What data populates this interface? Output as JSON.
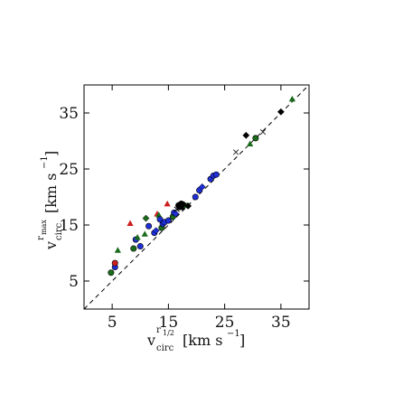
{
  "chart_data": {
    "type": "scatter",
    "xlabel": {
      "base": "v",
      "sub": "circ",
      "sup": "r",
      "supsub": "1/2",
      "units": "[km s",
      "units_exp": "−1",
      "units_close": "]"
    },
    "ylabel": {
      "base": "v",
      "sub": "circ",
      "sup": "r",
      "supsub": "max",
      "units": "[km s",
      "units_exp": "−1",
      "units_close": "]"
    },
    "xlim": [
      0,
      40
    ],
    "ylim": [
      0,
      40
    ],
    "x_ticks": [
      5,
      15,
      25,
      35
    ],
    "y_ticks": [
      5,
      15,
      25,
      35
    ],
    "x_tick_labels": [
      "5",
      "15",
      "25",
      "35"
    ],
    "y_tick_labels": [
      "5",
      "15",
      "25",
      "35"
    ],
    "reference_line": {
      "style": "dashed",
      "relation": "y = x"
    },
    "grid": false,
    "colors": {
      "green": "#1a6b1a",
      "red": "#cc1f1f",
      "blue": "#1f2fd6",
      "black": "#000000",
      "cross": "#333333"
    },
    "points": [
      {
        "x": 4.8,
        "y": 6.5,
        "color": "green",
        "marker": "circle"
      },
      {
        "x": 5.5,
        "y": 7.5,
        "color": "blue",
        "marker": "circle"
      },
      {
        "x": 5.5,
        "y": 8.2,
        "color": "red",
        "marker": "circle"
      },
      {
        "x": 6.0,
        "y": 10.5,
        "color": "green",
        "marker": "triangle"
      },
      {
        "x": 8.2,
        "y": 15.3,
        "color": "red",
        "marker": "triangle"
      },
      {
        "x": 8.8,
        "y": 10.8,
        "color": "green",
        "marker": "circle"
      },
      {
        "x": 9.2,
        "y": 12.4,
        "color": "blue",
        "marker": "circle"
      },
      {
        "x": 9.5,
        "y": 12.8,
        "color": "green",
        "marker": "triangle"
      },
      {
        "x": 10.0,
        "y": 11.2,
        "color": "blue",
        "marker": "circle"
      },
      {
        "x": 10.8,
        "y": 13.4,
        "color": "green",
        "marker": "triangle"
      },
      {
        "x": 11.0,
        "y": 16.2,
        "color": "green",
        "marker": "diamond"
      },
      {
        "x": 11.5,
        "y": 14.8,
        "color": "blue",
        "marker": "circle"
      },
      {
        "x": 12.5,
        "y": 13.6,
        "color": "blue",
        "marker": "circle"
      },
      {
        "x": 12.8,
        "y": 14.0,
        "color": "blue",
        "marker": "diamond"
      },
      {
        "x": 13.0,
        "y": 17.0,
        "color": "red",
        "marker": "triangle"
      },
      {
        "x": 13.3,
        "y": 16.8,
        "color": "green",
        "marker": "triangle"
      },
      {
        "x": 13.5,
        "y": 16.0,
        "color": "blue",
        "marker": "circle"
      },
      {
        "x": 13.8,
        "y": 14.5,
        "color": "green",
        "marker": "circle"
      },
      {
        "x": 14.0,
        "y": 15.2,
        "color": "blue",
        "marker": "circle"
      },
      {
        "x": 14.3,
        "y": 15.5,
        "color": "blue",
        "marker": "circle"
      },
      {
        "x": 14.8,
        "y": 18.8,
        "color": "red",
        "marker": "triangle"
      },
      {
        "x": 15.0,
        "y": 15.8,
        "color": "blue",
        "marker": "circle"
      },
      {
        "x": 15.8,
        "y": 16.5,
        "color": "green",
        "marker": "circle"
      },
      {
        "x": 16.0,
        "y": 17.2,
        "color": "blue",
        "marker": "circle"
      },
      {
        "x": 16.3,
        "y": 17.0,
        "color": "blue",
        "marker": "diamond"
      },
      {
        "x": 16.5,
        "y": 17.8,
        "color": "black",
        "marker": "cross"
      },
      {
        "x": 16.8,
        "y": 18.5,
        "color": "black",
        "marker": "circle"
      },
      {
        "x": 17.0,
        "y": 18.2,
        "color": "black",
        "marker": "circle"
      },
      {
        "x": 17.3,
        "y": 18.8,
        "color": "black",
        "marker": "circle"
      },
      {
        "x": 17.5,
        "y": 18.2,
        "color": "black",
        "marker": "diamond"
      },
      {
        "x": 17.8,
        "y": 18.6,
        "color": "black",
        "marker": "diamond"
      },
      {
        "x": 18.3,
        "y": 18.5,
        "color": "green",
        "marker": "triangle"
      },
      {
        "x": 18.5,
        "y": 18.4,
        "color": "black",
        "marker": "diamond"
      },
      {
        "x": 19.8,
        "y": 20.0,
        "color": "blue",
        "marker": "circle"
      },
      {
        "x": 20.5,
        "y": 21.2,
        "color": "blue",
        "marker": "circle"
      },
      {
        "x": 21.0,
        "y": 21.8,
        "color": "blue",
        "marker": "diamond"
      },
      {
        "x": 22.5,
        "y": 23.2,
        "color": "blue",
        "marker": "circle"
      },
      {
        "x": 23.0,
        "y": 23.8,
        "color": "blue",
        "marker": "circle"
      },
      {
        "x": 23.5,
        "y": 24.0,
        "color": "blue",
        "marker": "circle"
      },
      {
        "x": 27.0,
        "y": 28.0,
        "color": "cross",
        "marker": "cross"
      },
      {
        "x": 28.8,
        "y": 31.0,
        "color": "black",
        "marker": "diamond"
      },
      {
        "x": 29.5,
        "y": 29.5,
        "color": "green",
        "marker": "triangle"
      },
      {
        "x": 30.5,
        "y": 30.5,
        "color": "green",
        "marker": "circle"
      },
      {
        "x": 31.8,
        "y": 31.6,
        "color": "cross",
        "marker": "cross"
      },
      {
        "x": 35.0,
        "y": 35.2,
        "color": "black",
        "marker": "diamond"
      },
      {
        "x": 37.0,
        "y": 37.5,
        "color": "green",
        "marker": "triangle"
      }
    ]
  }
}
